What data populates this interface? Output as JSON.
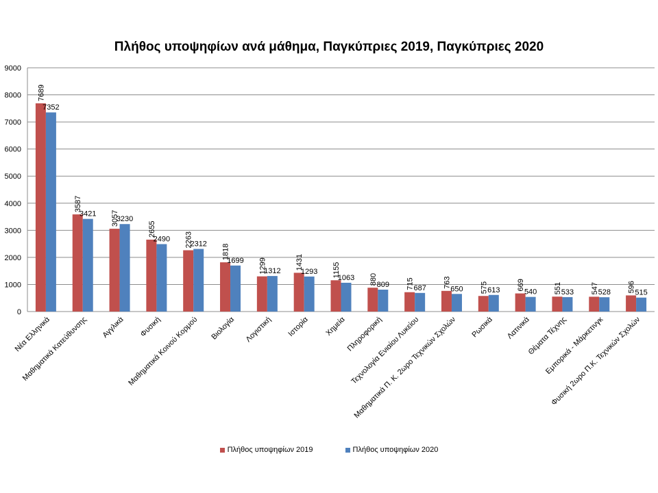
{
  "chart_data": {
    "type": "bar",
    "title": "Πλήθος υποψηφίων ανά μάθημα, Παγκύπριες 2019, Παγκύπριες 2020",
    "categories": [
      "Νέα Ελληνικά",
      "Μαθηματικά  Κατεύθυνσης",
      "Αγγλικά",
      "Φυσική",
      "Μαθηματικά  Κοινού Κορμού",
      "Βιολογία",
      "Λογιστική",
      "Ιστορία",
      "Χημεία",
      "Πληροφορική",
      "Τεχνολογία Ενιαίου Λυκείου",
      "Μαθηματικά  Π. Κ. 2ωρο Τεχνικών Σχολών",
      "Ρωσικά",
      "Λατινικά",
      "Θέματα Τέχνης",
      "Εμπορικά - Μάρκετινγκ",
      "Φυσική 2ωρο Π.Κ. Τεχνικών Σχολών"
    ],
    "series": [
      {
        "name": "Πλήθος υποψηφίων 2019",
        "color": "#c0504d",
        "values": [
          7689,
          3587,
          3057,
          2655,
          2263,
          1818,
          1299,
          1431,
          1155,
          880,
          715,
          763,
          575,
          669,
          551,
          547,
          596
        ]
      },
      {
        "name": "Πλήθος υποψηφίων 2020",
        "color": "#4f81bd",
        "values": [
          7352,
          3421,
          3230,
          2490,
          2312,
          1699,
          1312,
          1293,
          1063,
          809,
          687,
          650,
          613,
          540,
          533,
          528,
          515
        ]
      }
    ],
    "yticks": [
      "0",
      "1000",
      "2000",
      "3000",
      "4000",
      "5000",
      "6000",
      "7000",
      "8000",
      "9000"
    ],
    "ylim": [
      0,
      9000
    ],
    "grid": true,
    "legend_position": "bottom"
  }
}
